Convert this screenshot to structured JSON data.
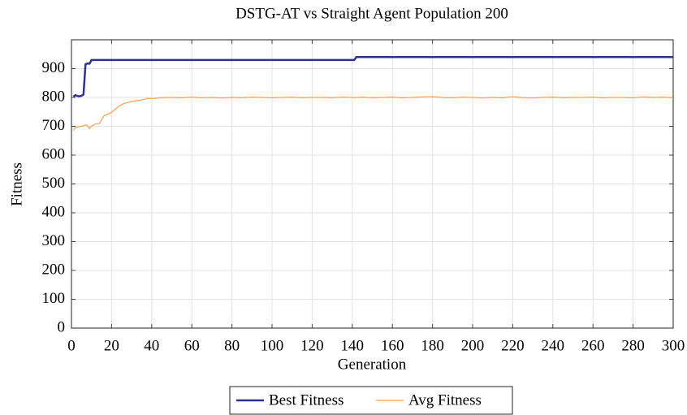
{
  "chart_data": {
    "type": "line",
    "title": "DSTG-AT vs Straight Agent Population 200",
    "xlabel": "Generation",
    "ylabel": "Fitness",
    "x": [
      1,
      2,
      3,
      4,
      5,
      6,
      7,
      8,
      9,
      10,
      11,
      12,
      14,
      16,
      18,
      20,
      22,
      24,
      26,
      28,
      30,
      32,
      34,
      36,
      38,
      40,
      45,
      50,
      55,
      60,
      65,
      70,
      75,
      80,
      85,
      90,
      95,
      100,
      105,
      110,
      115,
      120,
      125,
      130,
      135,
      140,
      141,
      142,
      145,
      150,
      155,
      160,
      165,
      170,
      175,
      180,
      185,
      190,
      195,
      200,
      205,
      210,
      215,
      220,
      225,
      230,
      235,
      240,
      245,
      250,
      255,
      260,
      265,
      270,
      275,
      280,
      285,
      290,
      295,
      300
    ],
    "series": [
      {
        "name": "Best Fitness",
        "color": "#2e3192",
        "width": 2.5,
        "values": [
          803,
          808,
          805,
          804,
          806,
          810,
          915,
          918,
          917,
          930,
          930,
          930,
          930,
          930,
          930,
          930,
          930,
          930,
          930,
          930,
          930,
          930,
          930,
          930,
          930,
          930,
          930,
          930,
          930,
          930,
          930,
          930,
          930,
          930,
          930,
          930,
          930,
          930,
          930,
          930,
          930,
          930,
          930,
          930,
          930,
          930,
          930,
          940,
          940,
          940,
          940,
          940,
          940,
          940,
          940,
          940,
          940,
          940,
          940,
          940,
          940,
          940,
          940,
          940,
          940,
          940,
          940,
          940,
          940,
          940,
          940,
          940,
          940,
          940,
          940,
          940,
          940,
          940,
          940,
          940
        ]
      },
      {
        "name": "Avg Fitness",
        "color": "#f5a04a",
        "width": 1.2,
        "values": [
          685,
          697,
          697,
          700,
          700,
          702,
          705,
          703,
          692,
          700,
          705,
          708,
          710,
          735,
          742,
          748,
          760,
          772,
          778,
          783,
          786,
          788,
          790,
          793,
          797,
          796,
          799,
          800,
          799,
          801,
          799,
          800,
          798,
          800,
          799,
          801,
          800,
          799,
          800,
          801,
          799,
          800,
          800,
          799,
          801,
          800,
          799,
          800,
          801,
          799,
          800,
          801,
          799,
          800,
          802,
          803,
          800,
          799,
          801,
          800,
          798,
          800,
          799,
          803,
          799,
          798,
          800,
          801,
          799,
          800,
          800,
          801,
          799,
          800,
          800,
          799,
          802,
          800,
          801,
          799
        ]
      }
    ],
    "xlim": [
      0,
      300
    ],
    "xticks": [
      0,
      20,
      40,
      60,
      80,
      100,
      120,
      140,
      160,
      180,
      200,
      220,
      240,
      260,
      280,
      300
    ],
    "ylim": [
      0,
      1000
    ],
    "yticks": [
      0,
      100,
      200,
      300,
      400,
      500,
      600,
      700,
      800,
      900
    ],
    "grid": true,
    "legend": "bottom"
  }
}
